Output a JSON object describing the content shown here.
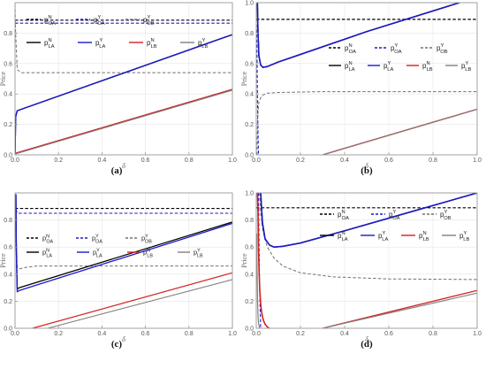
{
  "figure": {
    "colors": {
      "pN": "#000000",
      "pY": "#1a1acc",
      "pOB": "#707070",
      "pLB_N": "#d42020",
      "pLB_Y": "#808080",
      "frame": "#9a9a9a",
      "grid": "#e6e6e6"
    }
  },
  "chart_data": [
    {
      "type": "line",
      "panel_label": "(a)",
      "xlabel": "δ",
      "ylabel": "Price",
      "xlim": [
        0,
        1
      ],
      "ylim": [
        0,
        1
      ],
      "grid": true,
      "x_ticks": [
        "0.0",
        "0.2",
        "0.4",
        "0.6",
        "0.8",
        "1.0"
      ],
      "y_ticks": [
        "0.0",
        "0.2",
        "0.4",
        "0.6",
        "0.8"
      ],
      "legend_position": "top-right",
      "legend": [
        {
          "base": "p",
          "sub": "OA",
          "sup": "N",
          "dashed": true,
          "color": "pN"
        },
        {
          "base": "p",
          "sub": "OA",
          "sup": "Y",
          "dashed": true,
          "color": "pY"
        },
        {
          "base": "p",
          "sub": "OB",
          "sup": "Y",
          "dashed": true,
          "color": "pOB"
        },
        {
          "base": "p",
          "sub": "LA",
          "sup": "N",
          "dashed": false,
          "color": "pN"
        },
        {
          "base": "p",
          "sub": "LA",
          "sup": "Y",
          "dashed": false,
          "color": "pY"
        },
        {
          "base": "p",
          "sub": "LB",
          "sup": "N",
          "dashed": false,
          "color": "pLB_N"
        },
        {
          "base": "p",
          "sub": "LB",
          "sup": "Y",
          "dashed": false,
          "color": "pLB_Y"
        }
      ],
      "series": [
        {
          "name": "pOA N",
          "color": "pN",
          "dashed": true,
          "width": 1.1,
          "x": [
            0,
            1
          ],
          "y": [
            0.885,
            0.885
          ]
        },
        {
          "name": "pOA Y",
          "color": "pY",
          "dashed": true,
          "width": 1.1,
          "x": [
            0,
            1
          ],
          "y": [
            0.865,
            0.865
          ]
        },
        {
          "name": "pOB Y",
          "color": "pOB",
          "dashed": true,
          "width": 1.0,
          "x": [
            0,
            0.003,
            0.01,
            0.03,
            1
          ],
          "y": [
            0.99,
            0.8,
            0.56,
            0.54,
            0.54
          ]
        },
        {
          "name": "pLA N",
          "color": "pN",
          "dashed": false,
          "width": 1.4,
          "x": [
            0,
            0.003,
            0.01,
            1
          ],
          "y": [
            0.0,
            0.25,
            0.29,
            0.79
          ]
        },
        {
          "name": "pLA Y",
          "color": "pY",
          "dashed": false,
          "width": 1.4,
          "x": [
            0,
            0.003,
            0.01,
            1
          ],
          "y": [
            0.0,
            0.25,
            0.29,
            0.79
          ]
        },
        {
          "name": "pLB N",
          "color": "pLB_N",
          "dashed": false,
          "width": 1.4,
          "x": [
            0,
            1
          ],
          "y": [
            0.01,
            0.43
          ]
        },
        {
          "name": "pLB Y",
          "color": "pLB_Y",
          "dashed": false,
          "width": 1.1,
          "x": [
            0,
            1
          ],
          "y": [
            0.005,
            0.425
          ]
        }
      ]
    },
    {
      "type": "line",
      "panel_label": "(b)",
      "xlabel": "δ",
      "ylabel": "Price",
      "xlim": [
        0,
        1
      ],
      "ylim": [
        0,
        1
      ],
      "grid": true,
      "x_ticks": [
        "0.0",
        "0.2",
        "0.4",
        "0.6",
        "0.8",
        "1.0"
      ],
      "y_ticks": [
        "0.0",
        "0.2",
        "0.4",
        "0.6",
        "0.8",
        "1.0"
      ],
      "legend_position": "right",
      "legend": [
        {
          "base": "p",
          "sub": "OA",
          "sup": "N",
          "dashed": true,
          "color": "pN"
        },
        {
          "base": "p",
          "sub": "OA",
          "sup": "Y",
          "dashed": true,
          "color": "pY"
        },
        {
          "base": "p",
          "sub": "OB",
          "sup": "Y",
          "dashed": true,
          "color": "pOB"
        },
        {
          "base": "p",
          "sub": "LA",
          "sup": "N",
          "dashed": false,
          "color": "pN"
        },
        {
          "base": "p",
          "sub": "LA",
          "sup": "Y",
          "dashed": false,
          "color": "pY"
        },
        {
          "base": "p",
          "sub": "LB",
          "sup": "N",
          "dashed": false,
          "color": "pLB_N"
        },
        {
          "base": "p",
          "sub": "LB",
          "sup": "Y",
          "dashed": false,
          "color": "pLB_Y"
        }
      ],
      "series": [
        {
          "name": "pOA N",
          "color": "pN",
          "dashed": true,
          "width": 1.2,
          "x": [
            0,
            1
          ],
          "y": [
            0.89,
            0.89
          ]
        },
        {
          "name": "pOA Y",
          "color": "pY",
          "dashed": true,
          "width": 1.1,
          "x": [
            0,
            0.003,
            0.006,
            0.01
          ],
          "y": [
            0.89,
            0.7,
            0.3,
            0.0
          ]
        },
        {
          "name": "pOB Y",
          "color": "pOB",
          "dashed": true,
          "width": 1.0,
          "x": [
            0.003,
            0.006,
            0.012,
            0.025,
            0.05,
            0.1,
            0.3,
            1
          ],
          "y": [
            0.0,
            0.24,
            0.35,
            0.39,
            0.405,
            0.41,
            0.415,
            0.415
          ]
        },
        {
          "name": "pLA N",
          "color": "pN",
          "dashed": false,
          "width": 1.5,
          "x": [
            0.005,
            0.008,
            0.012,
            0.02,
            0.03,
            0.05,
            0.1,
            0.2,
            0.5,
            0.92
          ],
          "y": [
            1.0,
            0.8,
            0.65,
            0.59,
            0.575,
            0.58,
            0.61,
            0.66,
            0.81,
            1.0
          ]
        },
        {
          "name": "pLA Y",
          "color": "pY",
          "dashed": false,
          "width": 1.5,
          "x": [
            0.005,
            0.008,
            0.012,
            0.02,
            0.03,
            0.05,
            0.1,
            0.2,
            0.5,
            0.92
          ],
          "y": [
            1.0,
            0.8,
            0.65,
            0.59,
            0.575,
            0.58,
            0.61,
            0.66,
            0.81,
            1.0
          ]
        },
        {
          "name": "pLB N",
          "color": "pLB_N",
          "dashed": false,
          "width": 1.4,
          "x": [
            0.3,
            1
          ],
          "y": [
            0.0,
            0.3
          ]
        },
        {
          "name": "pLB Y",
          "color": "pLB_Y",
          "dashed": false,
          "width": 1.1,
          "x": [
            0.3,
            1
          ],
          "y": [
            0.0,
            0.3
          ]
        }
      ]
    },
    {
      "type": "line",
      "panel_label": "(c)",
      "xlabel": "δ",
      "ylabel": "Price",
      "xlim": [
        0,
        1
      ],
      "ylim": [
        0,
        1
      ],
      "grid": true,
      "x_ticks": [
        "0.0",
        "0.2",
        "0.4",
        "0.6",
        "0.8",
        "1.0"
      ],
      "y_ticks": [
        "0.0",
        "0.2",
        "0.4",
        "0.6",
        "0.8"
      ],
      "legend_position": "top-right",
      "legend": [
        {
          "base": "p",
          "sub": "OA",
          "sup": "N",
          "dashed": true,
          "color": "pN"
        },
        {
          "base": "p",
          "sub": "OA",
          "sup": "Y",
          "dashed": true,
          "color": "pY"
        },
        {
          "base": "p",
          "sub": "OB",
          "sup": "Y",
          "dashed": true,
          "color": "pOB"
        },
        {
          "base": "p",
          "sub": "LA",
          "sup": "N",
          "dashed": false,
          "color": "pN"
        },
        {
          "base": "p",
          "sub": "LA",
          "sup": "Y",
          "dashed": false,
          "color": "pY"
        },
        {
          "base": "p",
          "sub": "LB",
          "sup": "N",
          "dashed": false,
          "color": "pLB_N"
        },
        {
          "base": "p",
          "sub": "LB",
          "sup": "Y",
          "dashed": false,
          "color": "pLB_Y"
        }
      ],
      "series": [
        {
          "name": "pOA N",
          "color": "pN",
          "dashed": true,
          "width": 1.1,
          "x": [
            0,
            1
          ],
          "y": [
            0.885,
            0.885
          ]
        },
        {
          "name": "pOA Y",
          "color": "pY",
          "dashed": true,
          "width": 1.1,
          "x": [
            0,
            0.005,
            0.01,
            0.02,
            1
          ],
          "y": [
            0.99,
            0.87,
            0.855,
            0.85,
            0.85
          ]
        },
        {
          "name": "pOB Y",
          "color": "pOB",
          "dashed": true,
          "width": 1.0,
          "x": [
            0.003,
            0.005,
            0.01,
            0.02,
            0.05,
            0.1,
            1
          ],
          "y": [
            0.99,
            0.6,
            0.45,
            0.44,
            0.45,
            0.46,
            0.46
          ]
        },
        {
          "name": "pLA N",
          "color": "pN",
          "dashed": false,
          "width": 1.3,
          "x": [
            0.004,
            0.006,
            0.01,
            0.02,
            1
          ],
          "y": [
            0.99,
            0.6,
            0.29,
            0.3,
            0.785
          ]
        },
        {
          "name": "pLA Y",
          "color": "pY",
          "dashed": false,
          "width": 1.3,
          "x": [
            0.004,
            0.006,
            0.01,
            0.02,
            1
          ],
          "y": [
            0.99,
            0.55,
            0.27,
            0.28,
            0.775
          ]
        },
        {
          "name": "pLB N",
          "color": "pLB_N",
          "dashed": false,
          "width": 1.2,
          "x": [
            0.08,
            1
          ],
          "y": [
            0.0,
            0.41
          ]
        },
        {
          "name": "pLB Y",
          "color": "pLB_Y",
          "dashed": false,
          "width": 1.1,
          "x": [
            0.15,
            1
          ],
          "y": [
            0.0,
            0.36
          ]
        }
      ]
    },
    {
      "type": "line",
      "panel_label": "(d)",
      "xlabel": "δ",
      "ylabel": "Price",
      "xlim": [
        0,
        1
      ],
      "ylim": [
        0,
        1
      ],
      "grid": true,
      "x_ticks": [
        "0.0",
        "0.2",
        "0.4",
        "0.6",
        "0.8",
        "1.0"
      ],
      "y_ticks": [
        "0.0",
        "0.2",
        "0.4",
        "0.6",
        "0.8",
        "1.0"
      ],
      "legend_position": "right",
      "legend": [
        {
          "base": "p",
          "sub": "OA",
          "sup": "N",
          "dashed": true,
          "color": "pN"
        },
        {
          "base": "p",
          "sub": "OA",
          "sup": "Y",
          "dashed": true,
          "color": "pY"
        },
        {
          "base": "p",
          "sub": "OB",
          "sup": "Y",
          "dashed": true,
          "color": "pOB"
        },
        {
          "base": "p",
          "sub": "LA",
          "sup": "N",
          "dashed": false,
          "color": "pN"
        },
        {
          "base": "p",
          "sub": "LA",
          "sup": "Y",
          "dashed": false,
          "color": "pY"
        },
        {
          "base": "p",
          "sub": "LB",
          "sup": "N",
          "dashed": false,
          "color": "pLB_N"
        },
        {
          "base": "p",
          "sub": "LB",
          "sup": "Y",
          "dashed": false,
          "color": "pLB_Y"
        }
      ],
      "series": [
        {
          "name": "pOA N",
          "color": "pN",
          "dashed": true,
          "width": 1.2,
          "x": [
            0,
            1
          ],
          "y": [
            0.89,
            0.89
          ]
        },
        {
          "name": "pOA Y",
          "color": "pY",
          "dashed": true,
          "width": 1.1,
          "x": [
            0.01,
            0.012,
            0.015,
            0.02
          ],
          "y": [
            1.0,
            0.7,
            0.3,
            0.0
          ]
        },
        {
          "name": "pOB Y",
          "color": "pOB",
          "dashed": true,
          "width": 1.0,
          "x": [
            0.015,
            0.02,
            0.03,
            0.05,
            0.08,
            0.12,
            0.2,
            0.35,
            0.6,
            1
          ],
          "y": [
            1.0,
            0.85,
            0.72,
            0.6,
            0.52,
            0.46,
            0.41,
            0.38,
            0.365,
            0.36
          ]
        },
        {
          "name": "pLA N",
          "color": "pN",
          "dashed": false,
          "width": 1.5,
          "x": [
            0.02,
            0.028,
            0.04,
            0.06,
            0.08,
            0.12,
            0.2,
            0.4,
            0.7,
            1.0
          ],
          "y": [
            1.0,
            0.78,
            0.66,
            0.615,
            0.6,
            0.605,
            0.63,
            0.72,
            0.86,
            1.0
          ]
        },
        {
          "name": "pLA Y",
          "color": "pY",
          "dashed": false,
          "width": 1.5,
          "x": [
            0.02,
            0.028,
            0.04,
            0.06,
            0.08,
            0.12,
            0.2,
            0.4,
            0.7,
            1.0
          ],
          "y": [
            1.0,
            0.78,
            0.66,
            0.615,
            0.6,
            0.605,
            0.63,
            0.72,
            0.86,
            1.0
          ]
        },
        {
          "name": "pLB N upper",
          "color": "pLB_N",
          "dashed": false,
          "width": 1.3,
          "x": [
            0.3,
            1
          ],
          "y": [
            0.0,
            0.28
          ]
        },
        {
          "name": "pLB Y upper",
          "color": "pLB_Y",
          "dashed": false,
          "width": 1.1,
          "x": [
            0.3,
            1
          ],
          "y": [
            0.0,
            0.26
          ]
        },
        {
          "name": "pLB Y lower",
          "color": "pLB_Y",
          "dashed": false,
          "width": 1.2,
          "x": [
            0.002,
            0.004,
            0.006,
            0.008,
            0.01,
            0.015
          ],
          "y": [
            0.7,
            0.4,
            0.2,
            0.1,
            0.04,
            0.0
          ]
        },
        {
          "name": "pLB N lower",
          "color": "pLB_N",
          "dashed": false,
          "width": 1.6,
          "x": [
            0.005,
            0.008,
            0.01,
            0.013,
            0.016,
            0.02,
            0.025,
            0.032,
            0.04,
            0.05,
            0.06
          ],
          "y": [
            1.0,
            0.85,
            0.6,
            0.4,
            0.28,
            0.18,
            0.11,
            0.06,
            0.03,
            0.01,
            0.0
          ]
        }
      ]
    }
  ]
}
